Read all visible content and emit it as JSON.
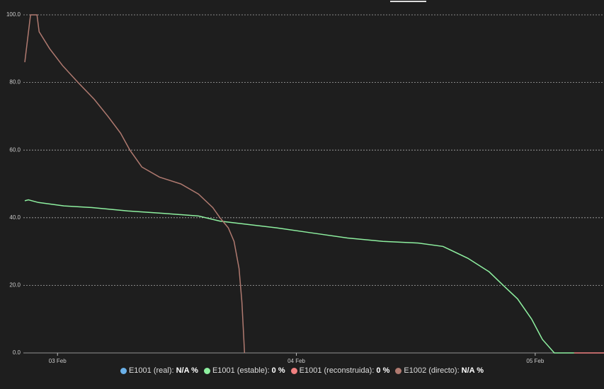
{
  "chart_data": {
    "type": "line",
    "x_unit_note_free": true,
    "xlim": [
      2.857,
      5.288
    ],
    "xticks": [
      {
        "value": 3,
        "label": "03 Feb"
      },
      {
        "value": 4,
        "label": "04 Feb"
      },
      {
        "value": 5,
        "label": "05 Feb"
      }
    ],
    "ylim": [
      0,
      100
    ],
    "yticks": [
      {
        "value": 0,
        "label": "0.0"
      },
      {
        "value": 20,
        "label": "20.0"
      },
      {
        "value": 40,
        "label": "40.0"
      },
      {
        "value": 60,
        "label": "60.0"
      },
      {
        "value": 80,
        "label": "80.0"
      },
      {
        "value": 100,
        "label": "100.0"
      }
    ],
    "grid": true,
    "series": [
      {
        "name": "E1001 (real):",
        "legend_value": "N/A %",
        "color": "#6ab0e8",
        "x": [],
        "values": []
      },
      {
        "name": "E1001 (estable):",
        "legend_value": "0 %",
        "color": "#8ef0a0",
        "x": [
          2.863,
          2.878,
          2.92,
          3.027,
          3.145,
          3.294,
          3.442,
          3.59,
          3.68,
          3.798,
          3.917,
          4.065,
          4.214,
          4.362,
          4.51,
          4.614,
          4.718,
          4.807,
          4.866,
          4.926,
          4.985,
          5.03,
          5.08,
          5.163
        ],
        "values": [
          45,
          45.3,
          44.5,
          43.5,
          43,
          42,
          41.3,
          40.5,
          39,
          38,
          37,
          35.5,
          34,
          33,
          32.5,
          31.5,
          28,
          24,
          20,
          16,
          10,
          4,
          0,
          0
        ]
      },
      {
        "name": "E1001 (reconstruida):",
        "legend_value": "0 %",
        "color": "#f08080",
        "x": [
          5.163,
          5.288
        ],
        "values": [
          0,
          0
        ]
      },
      {
        "name": "E1002 (directo):",
        "legend_value": "N/A %",
        "color": "#b07a70",
        "x": [
          2.863,
          2.887,
          2.914,
          2.923,
          2.967,
          3.021,
          3.086,
          3.154,
          3.211,
          3.264,
          3.303,
          3.353,
          3.427,
          3.516,
          3.59,
          3.65,
          3.68,
          3.715,
          3.739,
          3.76,
          3.772,
          3.783
        ],
        "values": [
          86,
          100,
          100,
          95,
          90,
          85,
          80,
          75,
          70,
          65,
          60,
          55,
          52,
          50,
          47,
          43,
          40,
          37,
          33,
          25,
          15,
          0
        ]
      }
    ]
  }
}
